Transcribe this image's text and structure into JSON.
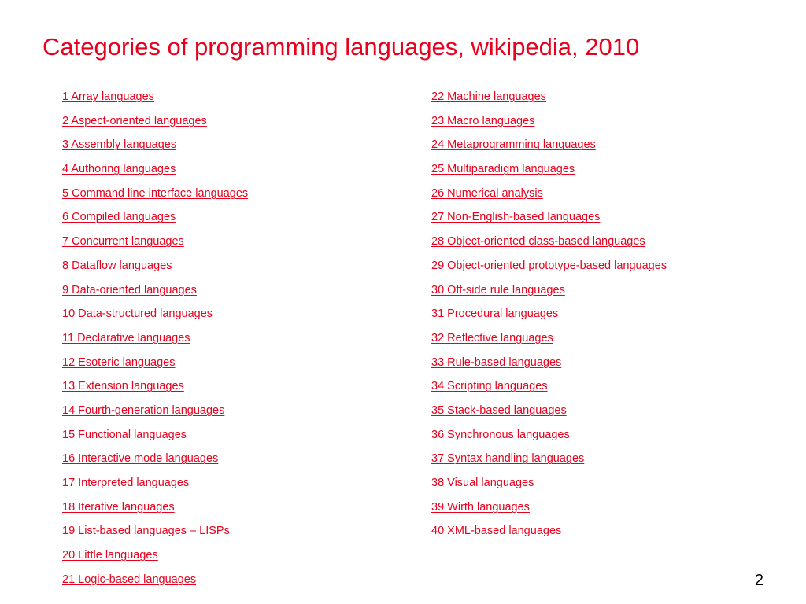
{
  "slide": {
    "title": "Categories of programming languages, wikipedia, 2010",
    "page_number": "2"
  },
  "colors": {
    "accent": "#e8001c",
    "background": "#ffffff",
    "text": "#000000"
  },
  "categories": {
    "left": [
      "1 Array languages",
      "2 Aspect-oriented languages",
      "3 Assembly languages",
      "4 Authoring languages",
      "5 Command line interface languages",
      "6 Compiled languages",
      "7 Concurrent languages",
      "8 Dataflow languages",
      "9 Data-oriented languages",
      "10 Data-structured languages",
      "11 Declarative languages",
      "12 Esoteric languages",
      "13 Extension languages",
      "14 Fourth-generation languages",
      "15 Functional languages",
      "16 Interactive mode languages",
      "17 Interpreted languages",
      "18 Iterative languages",
      "19 List-based languages – LISPs",
      "20 Little languages",
      "21 Logic-based languages"
    ],
    "right": [
      "22 Machine languages",
      "23 Macro languages",
      "24 Metaprogramming languages",
      "25 Multiparadigm languages",
      "26 Numerical analysis",
      "27 Non-English-based languages",
      "28 Object-oriented class-based languages",
      "29 Object-oriented prototype-based languages",
      "30 Off-side rule languages",
      "31 Procedural languages",
      "32 Reflective languages",
      "33 Rule-based languages",
      "34 Scripting languages",
      "35 Stack-based languages",
      "36 Synchronous languages",
      "37 Syntax handling languages",
      "38 Visual languages",
      "39 Wirth languages",
      "40 XML-based languages"
    ]
  }
}
